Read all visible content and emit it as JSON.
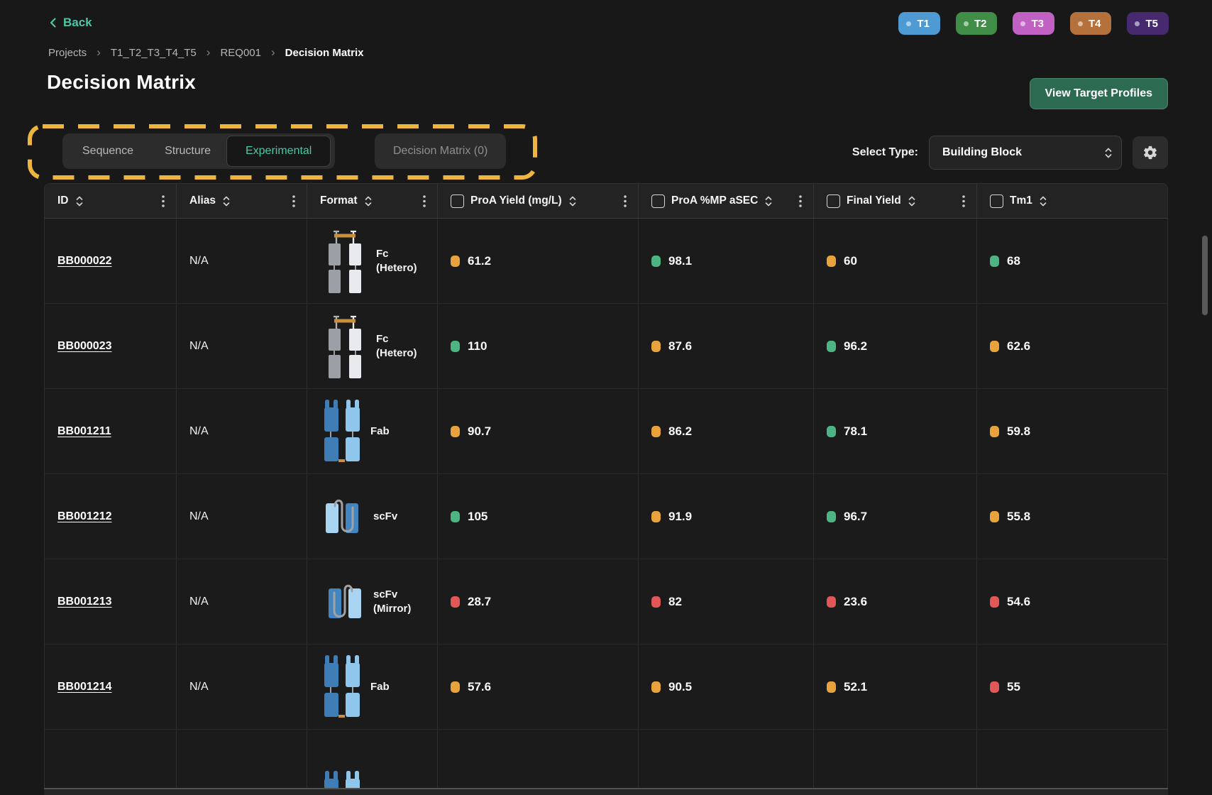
{
  "page": {
    "back_label": "Back",
    "breadcrumb": [
      "Projects",
      "T1_T2_T3_T4_T5",
      "REQ001",
      "Decision Matrix"
    ],
    "title": "Decision Matrix",
    "view_profiles_button": "View Target Profiles",
    "badges": [
      {
        "label": "T1",
        "bg": "#4e9ad2"
      },
      {
        "label": "T2",
        "bg": "#3f8d46"
      },
      {
        "label": "T3",
        "bg": "#c161c4"
      },
      {
        "label": "T4",
        "bg": "#b4713c"
      },
      {
        "label": "T5",
        "bg": "#46296e"
      }
    ]
  },
  "tabs": {
    "items": [
      "Sequence",
      "Structure",
      "Experimental"
    ],
    "active_index": 2,
    "disabled_tab": "Decision Matrix (0)",
    "annotation_color": "#edb43e"
  },
  "controls": {
    "label": "Select Type:",
    "value": "Building Block",
    "gear_icon": "settings-gear"
  },
  "table": {
    "status_colors": {
      "good": "#4db483",
      "warn": "#e8a33c",
      "bad": "#e25757"
    },
    "columns": [
      {
        "label": "ID",
        "checkbox": false,
        "sort": true,
        "menu": true
      },
      {
        "label": "Alias",
        "checkbox": false,
        "sort": true,
        "menu": true
      },
      {
        "label": "Format",
        "checkbox": false,
        "sort": true,
        "menu": true
      },
      {
        "label": "ProA Yield (mg/L)",
        "checkbox": true,
        "sort": true,
        "menu": true
      },
      {
        "label": "ProA %MP aSEC",
        "checkbox": true,
        "sort": true,
        "menu": true
      },
      {
        "label": "Final Yield",
        "checkbox": true,
        "sort": true,
        "menu": true
      },
      {
        "label": "Tm1",
        "checkbox": true,
        "sort": true,
        "menu": false
      }
    ],
    "rows": [
      {
        "id": "BB000022",
        "alias": "N/A",
        "format": {
          "icon": "fc-hetero",
          "label": [
            "Fc",
            "(Hetero)"
          ]
        },
        "values": [
          {
            "v": "61.2",
            "s": "warn"
          },
          {
            "v": "98.1",
            "s": "good"
          },
          {
            "v": "60",
            "s": "warn"
          },
          {
            "v": "68",
            "s": "good"
          }
        ]
      },
      {
        "id": "BB000023",
        "alias": "N/A",
        "format": {
          "icon": "fc-hetero",
          "label": [
            "Fc",
            "(Hetero)"
          ]
        },
        "values": [
          {
            "v": "110",
            "s": "good"
          },
          {
            "v": "87.6",
            "s": "warn"
          },
          {
            "v": "96.2",
            "s": "good"
          },
          {
            "v": "62.6",
            "s": "warn"
          }
        ]
      },
      {
        "id": "BB001211",
        "alias": "N/A",
        "format": {
          "icon": "fab",
          "label": [
            "Fab"
          ]
        },
        "values": [
          {
            "v": "90.7",
            "s": "warn"
          },
          {
            "v": "86.2",
            "s": "warn"
          },
          {
            "v": "78.1",
            "s": "good"
          },
          {
            "v": "59.8",
            "s": "warn"
          }
        ]
      },
      {
        "id": "BB001212",
        "alias": "N/A",
        "format": {
          "icon": "scfv",
          "label": [
            "scFv"
          ]
        },
        "values": [
          {
            "v": "105",
            "s": "good"
          },
          {
            "v": "91.9",
            "s": "warn"
          },
          {
            "v": "96.7",
            "s": "good"
          },
          {
            "v": "55.8",
            "s": "warn"
          }
        ]
      },
      {
        "id": "BB001213",
        "alias": "N/A",
        "format": {
          "icon": "scfv-mirror",
          "label": [
            "scFv",
            "(Mirror)"
          ]
        },
        "values": [
          {
            "v": "28.7",
            "s": "bad"
          },
          {
            "v": "82",
            "s": "bad"
          },
          {
            "v": "23.6",
            "s": "bad"
          },
          {
            "v": "54.6",
            "s": "bad"
          }
        ]
      },
      {
        "id": "BB001214",
        "alias": "N/A",
        "format": {
          "icon": "fab",
          "label": [
            "Fab"
          ]
        },
        "values": [
          {
            "v": "57.6",
            "s": "warn"
          },
          {
            "v": "90.5",
            "s": "warn"
          },
          {
            "v": "52.1",
            "s": "warn"
          },
          {
            "v": "55",
            "s": "bad"
          }
        ]
      }
    ],
    "partial_row": {
      "format_icon": "fab"
    }
  }
}
